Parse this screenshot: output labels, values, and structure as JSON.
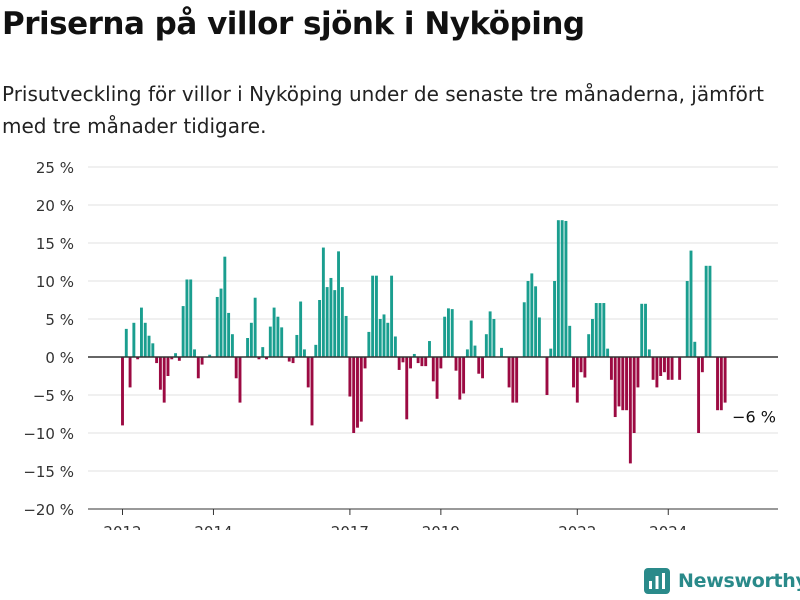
{
  "header": {
    "title": "Priserna på villor sjönk i Nyköping",
    "subtitle": "Prisutveckling för villor i Nyköping under de senaste tre månaderna, jämfört med tre månader tidigare."
  },
  "brand": {
    "name": "Newsworthy",
    "icon": "newsworthy-logo-icon"
  },
  "colors": {
    "positive": "#1a9e8f",
    "negative": "#9c0a42",
    "grid": "#e2e2e2",
    "axis": "#333333"
  },
  "chart_data": {
    "type": "bar",
    "start": "2012-01",
    "ylim": [
      -20,
      25
    ],
    "y_ticks": [
      {
        "value": 25,
        "label": "25 %"
      },
      {
        "value": 20,
        "label": "20 %"
      },
      {
        "value": 15,
        "label": "15 %"
      },
      {
        "value": 10,
        "label": "10 %"
      },
      {
        "value": 5,
        "label": "5 %"
      },
      {
        "value": 0,
        "label": "0 %"
      },
      {
        "value": -5,
        "label": "−5 %"
      },
      {
        "value": -10,
        "label": "−10 %"
      },
      {
        "value": -15,
        "label": "−15 %"
      },
      {
        "value": -20,
        "label": "−20 %"
      }
    ],
    "x_ticks": [
      {
        "date": "2012-01",
        "label": "2012"
      },
      {
        "date": "2014-01",
        "label": "2014"
      },
      {
        "date": "2017-01",
        "label": "2017"
      },
      {
        "date": "2019-01",
        "label": "2019"
      },
      {
        "date": "2022-01",
        "label": "2022"
      },
      {
        "date": "2024-01",
        "label": "2024"
      }
    ],
    "values": [
      -9,
      3.7,
      -4,
      4.5,
      -0.3,
      6.5,
      4.5,
      2.8,
      1.8,
      -0.8,
      -4.3,
      -6,
      -2.5,
      -0.3,
      0.5,
      -0.5,
      6.7,
      10.2,
      10.2,
      1,
      -2.8,
      -1,
      0,
      0.3,
      0,
      7.9,
      9,
      13.2,
      5.8,
      3,
      -2.8,
      -6,
      0,
      2.5,
      4.5,
      7.8,
      -0.3,
      1.3,
      -0.3,
      4,
      6.5,
      5.3,
      3.9,
      0,
      -0.6,
      -0.8,
      2.9,
      7.3,
      1,
      -4,
      -9,
      1.6,
      7.5,
      14.4,
      9.2,
      10.4,
      8.8,
      13.9,
      9.2,
      5.4,
      -5.2,
      -10,
      -9.3,
      -8.5,
      -1.5,
      3.3,
      10.7,
      10.7,
      5,
      5.6,
      4.5,
      10.7,
      2.7,
      -1.7,
      -0.7,
      -8.2,
      -1.5,
      0.4,
      -0.8,
      -1.2,
      -1.2,
      2.1,
      -3.2,
      -5.5,
      -1.5,
      5.3,
      6.4,
      6.3,
      -1.8,
      -5.6,
      -4.8,
      1,
      4.8,
      1.5,
      -2.2,
      -2.8,
      3,
      6,
      5,
      0,
      1.2,
      0,
      -4,
      -6,
      -6,
      0,
      7.2,
      10,
      11,
      9.3,
      5.2,
      0,
      -5,
      1.1,
      10,
      18,
      18,
      17.9,
      4.1,
      -4,
      -6,
      -2,
      -2.7,
      3,
      5,
      7.1,
      7.1,
      7.1,
      1.1,
      -3,
      -7.9,
      -6.5,
      -7,
      -7,
      -14,
      -10,
      -4,
      7,
      7,
      1,
      -3,
      -4,
      -2.5,
      -2,
      -3,
      -3,
      0,
      -3,
      0,
      10,
      14,
      2,
      -10,
      -2,
      12,
      12,
      0,
      -7,
      -7,
      -6
    ],
    "annotation": {
      "label": "−6 %"
    }
  }
}
